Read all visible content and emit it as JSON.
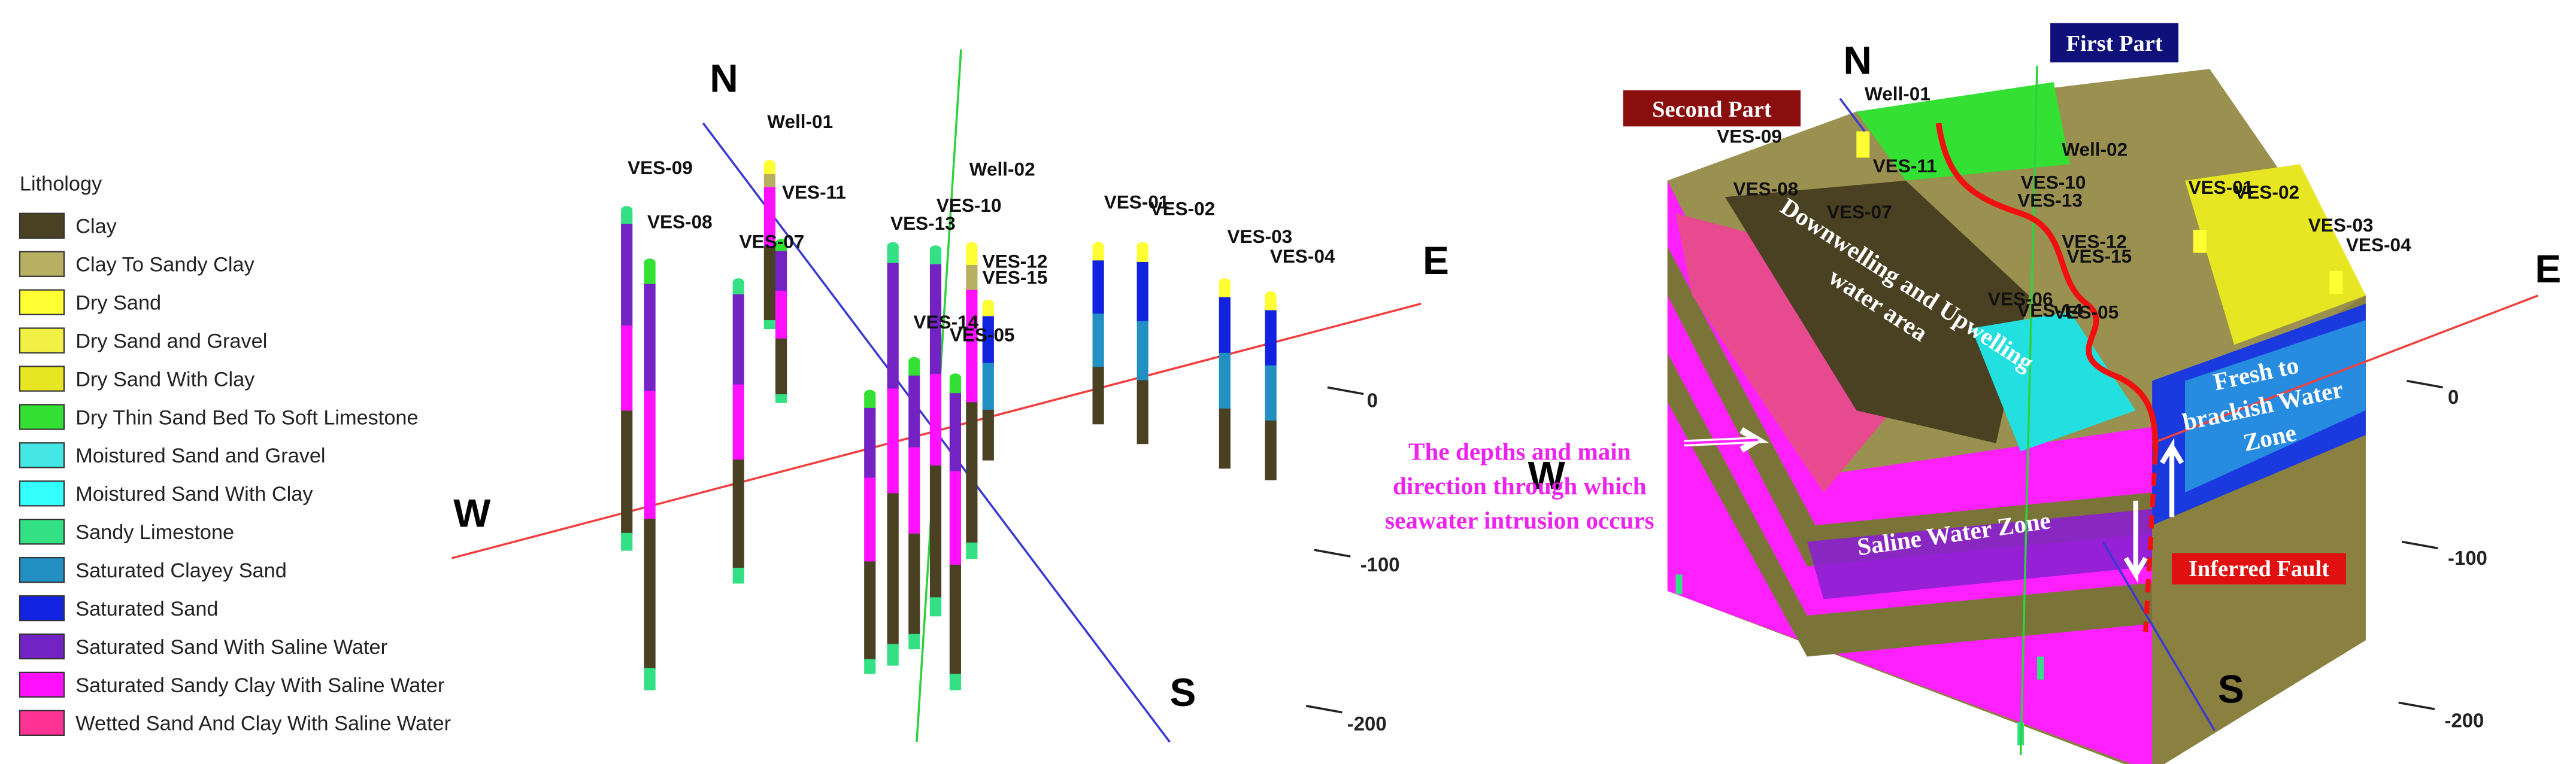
{
  "legend": {
    "title": "Lithology",
    "items": [
      {
        "label": "Clay",
        "color": "#4a4122"
      },
      {
        "label": "Clay To Sandy Clay",
        "color": "#b7b062"
      },
      {
        "label": "Dry Sand",
        "color": "#ffff33"
      },
      {
        "label": "Dry Sand and Gravel",
        "color": "#f2f045"
      },
      {
        "label": "Dry Sand With Clay",
        "color": "#e6e622"
      },
      {
        "label": "Dry Thin Sand Bed To Soft Limestone",
        "color": "#33e033"
      },
      {
        "label": "Moistured Sand and Gravel",
        "color": "#44e6e6"
      },
      {
        "label": "Moistured Sand With Clay",
        "color": "#33ffff"
      },
      {
        "label": "Sandy Limestone",
        "color": "#33e083"
      },
      {
        "label": "Saturated Clayey Sand",
        "color": "#2290c2"
      },
      {
        "label": "Saturated Sand",
        "color": "#1122e0"
      },
      {
        "label": "Saturated Sand With Saline Water",
        "color": "#7322c4"
      },
      {
        "label": "Saturated Sandy Clay With Saline Water",
        "color": "#ff11ff"
      },
      {
        "label": "Wetted Sand And Clay With Saline Water",
        "color": "#ff3393"
      }
    ]
  },
  "left_panel": {
    "directions": [
      "N",
      "S",
      "E",
      "W"
    ],
    "wells": [
      "Well-01",
      "VES-09",
      "VES-11",
      "VES-08",
      "VES-07",
      "VES-13",
      "VES-10",
      "Well-02",
      "VES-01",
      "VES-02",
      "VES-03",
      "VES-04",
      "VES-12",
      "VES-15",
      "VES-14",
      "VES-05"
    ],
    "depths": [
      "0",
      "-100",
      "-200"
    ]
  },
  "right_panel": {
    "directions": [
      "N",
      "S",
      "E",
      "W"
    ],
    "wells": [
      "Well-01",
      "VES-09",
      "Well-02",
      "VES-11",
      "VES-08",
      "VES-07",
      "VES-10",
      "VES-13",
      "VES-12",
      "VES-15",
      "VES-06",
      "VES-14",
      "VES-05",
      "VES-01",
      "VES-02",
      "VES-03",
      "VES-04"
    ],
    "depths": [
      "0",
      "-100",
      "-200"
    ],
    "second_part": "Second Part",
    "first_part": "First Part",
    "downwelling": [
      "Downwelling and Upwelling",
      "water area"
    ],
    "fresh_zone": [
      "Fresh to",
      "brackish Water",
      "Zone"
    ],
    "saline_zone": "Saline Water Zone",
    "inferred_fault": "Inferred Fault",
    "intrusion_note": [
      "The depths and main",
      "direction through which",
      "seawater intrusion occurs"
    ]
  }
}
